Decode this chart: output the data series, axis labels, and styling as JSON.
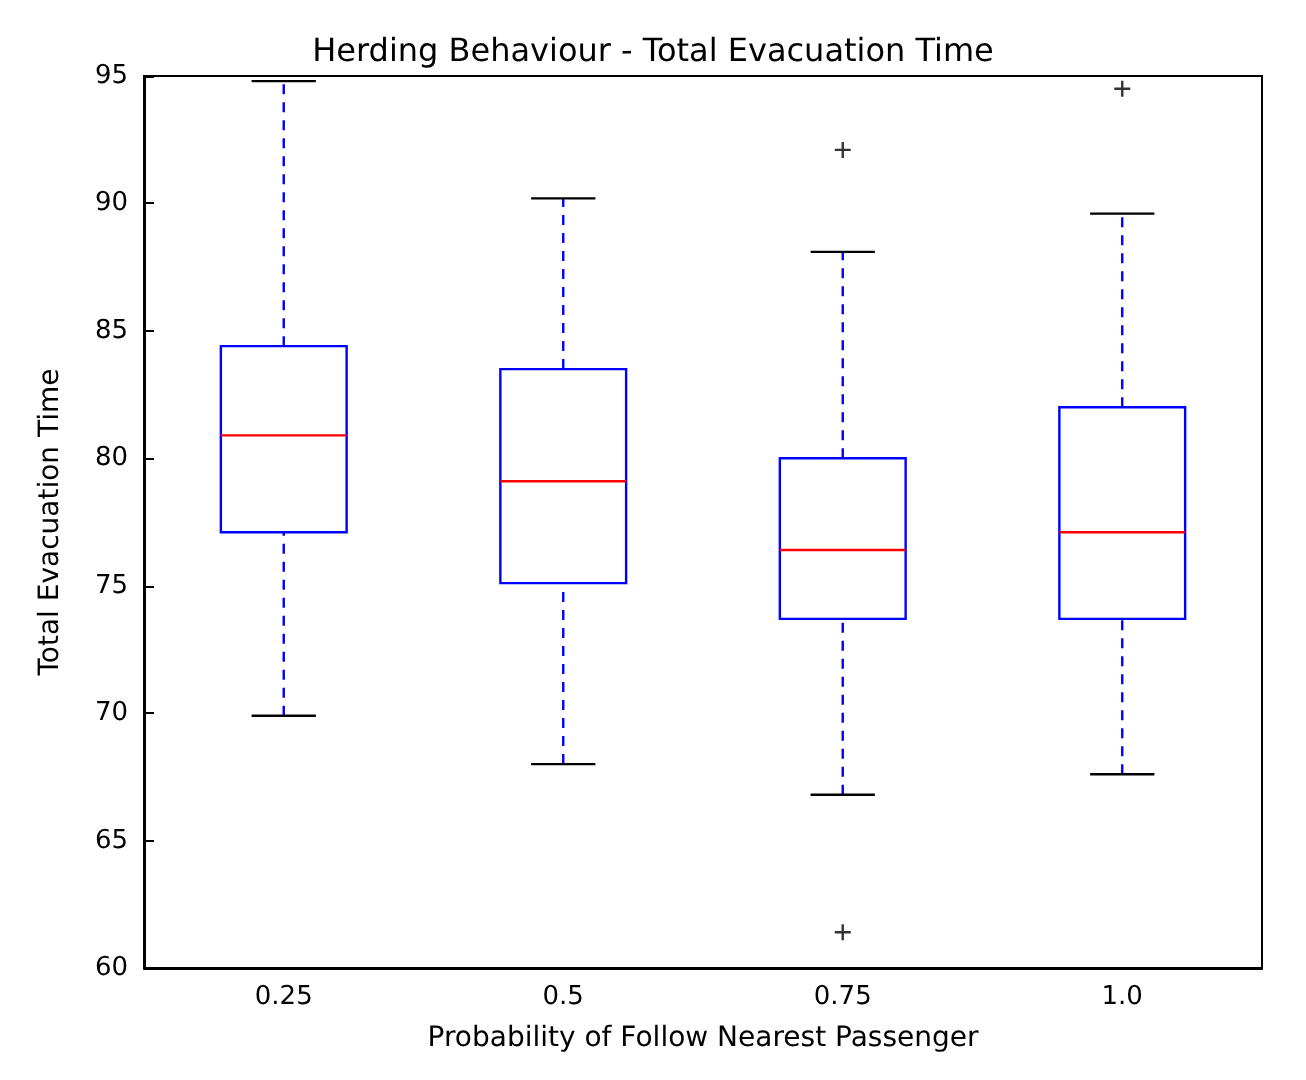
{
  "chart_data": {
    "type": "box",
    "title": "Herding Behaviour - Total Evacuation Time",
    "xlabel": "Probability of Follow Nearest Passenger",
    "ylabel": "Total Evacuation Time",
    "categories": [
      "0.25",
      "0.5",
      "0.75",
      "1.0"
    ],
    "series": [
      {
        "color": "#0000ff",
        "boxes": [
          {
            "low": 69.9,
            "q1": 77.1,
            "median": 80.9,
            "q3": 84.4,
            "high": 94.8
          },
          {
            "low": 68.0,
            "q1": 75.1,
            "median": 79.1,
            "q3": 83.5,
            "high": 90.2
          },
          {
            "low": 66.8,
            "q1": 73.7,
            "median": 76.4,
            "q3": 80.0,
            "high": 88.1,
            "outliers": [
              92.1,
              61.4
            ]
          },
          {
            "low": 67.6,
            "q1": 73.7,
            "median": 77.1,
            "q3": 82.0,
            "high": 89.6,
            "outliers": [
              94.5
            ]
          }
        ]
      }
    ],
    "ylim": [
      60,
      95
    ],
    "yticks": [
      60,
      65,
      70,
      75,
      80,
      85,
      90,
      95
    ],
    "grid": false,
    "marker": "cross",
    "line_style": "dashed"
  }
}
